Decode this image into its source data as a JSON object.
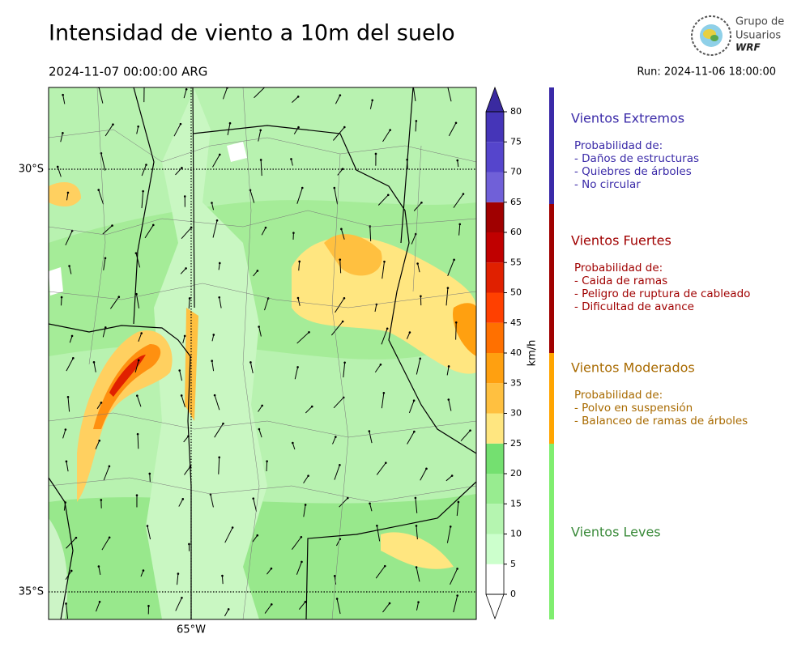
{
  "header": {
    "title": "Intensidad de viento a 10m del suelo",
    "valid_time": "2024-11-07 00:00:00 ARG",
    "run": "Run: 2024-11-06 18:00:00"
  },
  "logo": {
    "line1": "Grupo de",
    "line2": "Usuarios",
    "line3": "WRF"
  },
  "map": {
    "lat_labels": [
      "30°S",
      "35°S"
    ],
    "lon_labels": [
      "65°W"
    ]
  },
  "colorbar": {
    "label": "km/h",
    "ticks": [
      0,
      5,
      10,
      15,
      20,
      25,
      30,
      35,
      40,
      45,
      50,
      55,
      60,
      65,
      70,
      75,
      80
    ],
    "colors": [
      "#ffffff",
      "#ccffcc",
      "#b5f5b0",
      "#98ec90",
      "#74e070",
      "#ffe680",
      "#ffc040",
      "#ffa010",
      "#ff7000",
      "#ff4000",
      "#e02000",
      "#c00000",
      "#a00000",
      "#7060d8",
      "#5545cc",
      "#4535b8"
    ],
    "over_color": "#3a2aa0",
    "under_color": "#ffffff"
  },
  "categories": [
    {
      "title": "Vientos Extremos",
      "text_color": "#3a2aa8",
      "bar_color": "#3a2aa8",
      "description": [
        "Probabilidad de:",
        "- Daños de estructuras",
        "- Quiebres de árboles",
        "- No circular"
      ]
    },
    {
      "title": "Vientos Fuertes",
      "text_color": "#a00000",
      "bar_color": "#a00000",
      "description": [
        "Probabilidad de:",
        "- Caida de ramas",
        "- Peligro de ruptura de cableado",
        "- Dificultad de avance"
      ]
    },
    {
      "title": "Vientos Moderados",
      "text_color": "#a86a00",
      "bar_color": "#ffa500",
      "description": [
        "Probabilidad de:",
        "- Polvo en suspensión",
        "- Balanceo de ramas de árboles"
      ]
    },
    {
      "title": "Vientos Leves",
      "text_color": "#3a8a3a",
      "bar_color": "#80ee70",
      "description": []
    }
  ]
}
